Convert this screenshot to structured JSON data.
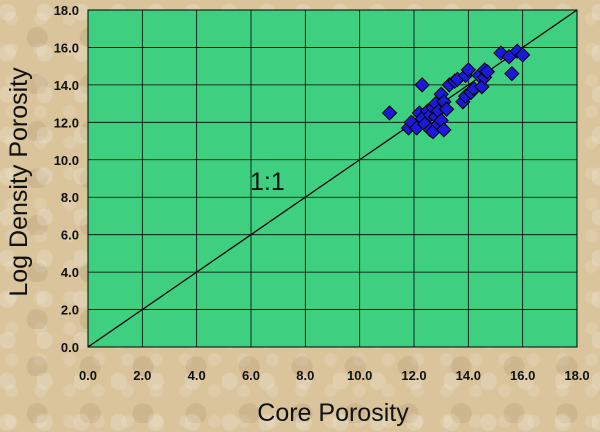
{
  "chart_data": {
    "type": "scatter",
    "title": "",
    "xlabel": "Core Porosity",
    "ylabel": "Log Density Porosity",
    "xlim": [
      0,
      18
    ],
    "ylim": [
      0,
      18
    ],
    "x_ticks": [
      "0.0",
      "2.0",
      "4.0",
      "6.0",
      "8.0",
      "10.0",
      "12.0",
      "14.0",
      "16.0",
      "18.0"
    ],
    "y_ticks": [
      "0.0",
      "2.0",
      "4.0",
      "6.0",
      "8.0",
      "10.0",
      "12.0",
      "14.0",
      "16.0",
      "18.0"
    ],
    "grid": true,
    "reference_line": {
      "label": "1:1",
      "from": [
        0,
        0
      ],
      "to": [
        18,
        18
      ]
    },
    "colors": {
      "plot_bg": "#3ecf80",
      "marker": "#1a1ad8",
      "grid": "#000000"
    },
    "series": [
      {
        "marker": "diamond",
        "points": [
          [
            11.1,
            12.5
          ],
          [
            11.8,
            11.7
          ],
          [
            11.9,
            12.0
          ],
          [
            12.1,
            11.7
          ],
          [
            12.2,
            12.5
          ],
          [
            12.3,
            12.2
          ],
          [
            12.3,
            14.0
          ],
          [
            12.4,
            11.9
          ],
          [
            12.5,
            12.6
          ],
          [
            12.6,
            11.6
          ],
          [
            12.6,
            12.4
          ],
          [
            12.7,
            12.8
          ],
          [
            12.7,
            11.5
          ],
          [
            12.8,
            12.3
          ],
          [
            12.8,
            13.0
          ],
          [
            12.9,
            11.9
          ],
          [
            12.9,
            12.6
          ],
          [
            13.0,
            13.5
          ],
          [
            13.0,
            12.1
          ],
          [
            13.1,
            11.6
          ],
          [
            13.1,
            13.1
          ],
          [
            13.2,
            12.7
          ],
          [
            13.3,
            14.0
          ],
          [
            13.5,
            14.2
          ],
          [
            13.6,
            14.3
          ],
          [
            13.8,
            13.1
          ],
          [
            13.9,
            13.4
          ],
          [
            13.9,
            14.5
          ],
          [
            14.0,
            14.8
          ],
          [
            14.1,
            13.6
          ],
          [
            14.2,
            13.8
          ],
          [
            14.4,
            14.5
          ],
          [
            14.5,
            13.9
          ],
          [
            14.6,
            14.4
          ],
          [
            14.6,
            14.8
          ],
          [
            14.7,
            14.7
          ],
          [
            15.2,
            15.7
          ],
          [
            15.5,
            15.5
          ],
          [
            15.6,
            14.6
          ],
          [
            15.8,
            15.8
          ],
          [
            16.0,
            15.6
          ]
        ]
      }
    ]
  }
}
